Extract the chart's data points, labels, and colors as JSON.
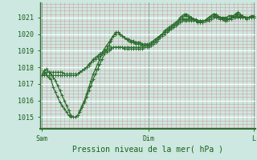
{
  "background_color": "#cce8e0",
  "plot_bg_color": "#cce8e0",
  "line_color": "#2d6e2d",
  "marker_color": "#2d6e2d",
  "xlabel": "Pression niveau de la mer( hPa )",
  "ylim": [
    1014.3,
    1021.9
  ],
  "yticks": [
    1015,
    1016,
    1017,
    1018,
    1019,
    1020,
    1021
  ],
  "xtick_labels": [
    "Sam",
    "Dim",
    "L"
  ],
  "xtick_positions": [
    0,
    48,
    95
  ],
  "total_points": 96,
  "series1": [
    1017.5,
    1017.8,
    1017.9,
    1017.7,
    1017.6,
    1017.4,
    1017.2,
    1016.9,
    1016.6,
    1016.3,
    1016.0,
    1015.7,
    1015.4,
    1015.1,
    1015.0,
    1015.0,
    1015.1,
    1015.3,
    1015.6,
    1015.9,
    1016.2,
    1016.6,
    1016.9,
    1017.3,
    1017.6,
    1017.9,
    1018.2,
    1018.5,
    1018.8,
    1019.0,
    1019.3,
    1019.6,
    1019.9,
    1020.0,
    1020.1,
    1020.0,
    1019.9,
    1019.8,
    1019.7,
    1019.6,
    1019.5,
    1019.5,
    1019.4,
    1019.4,
    1019.4,
    1019.3,
    1019.3,
    1019.3,
    1019.3,
    1019.4,
    1019.5,
    1019.6,
    1019.7,
    1019.9,
    1020.0,
    1020.2,
    1020.3,
    1020.4,
    1020.5,
    1020.6,
    1020.7,
    1020.8,
    1021.0,
    1021.1,
    1021.2,
    1021.2,
    1021.1,
    1021.0,
    1020.9,
    1020.8,
    1020.7,
    1020.7,
    1020.7,
    1020.8,
    1020.9,
    1021.0,
    1021.1,
    1021.2,
    1021.2,
    1021.1,
    1021.0,
    1020.9,
    1020.8,
    1020.8,
    1020.9,
    1021.0,
    1021.1,
    1021.2,
    1021.3,
    1021.2,
    1021.1,
    1021.0,
    1020.9,
    1021.0,
    1021.1,
    1021.1
  ],
  "series2": [
    1017.5,
    1017.6,
    1017.7,
    1017.7,
    1017.7,
    1017.7,
    1017.7,
    1017.7,
    1017.7,
    1017.7,
    1017.6,
    1017.6,
    1017.6,
    1017.6,
    1017.6,
    1017.6,
    1017.6,
    1017.7,
    1017.8,
    1017.9,
    1018.0,
    1018.1,
    1018.3,
    1018.4,
    1018.5,
    1018.6,
    1018.7,
    1018.8,
    1018.9,
    1018.9,
    1019.0,
    1019.1,
    1019.2,
    1019.2,
    1019.2,
    1019.2,
    1019.2,
    1019.2,
    1019.2,
    1019.2,
    1019.2,
    1019.2,
    1019.2,
    1019.2,
    1019.2,
    1019.2,
    1019.3,
    1019.3,
    1019.3,
    1019.4,
    1019.5,
    1019.6,
    1019.7,
    1019.9,
    1020.0,
    1020.1,
    1020.2,
    1020.3,
    1020.4,
    1020.5,
    1020.6,
    1020.7,
    1020.8,
    1020.9,
    1020.9,
    1020.9,
    1020.9,
    1020.9,
    1020.9,
    1020.9,
    1020.8,
    1020.8,
    1020.8,
    1020.8,
    1020.8,
    1020.9,
    1021.0,
    1021.1,
    1021.1,
    1021.0,
    1020.9,
    1020.9,
    1020.9,
    1020.9,
    1020.9,
    1021.0,
    1021.0,
    1021.1,
    1021.1,
    1021.0,
    1021.0,
    1021.0,
    1021.0,
    1021.0,
    1021.0,
    1021.0
  ],
  "series3": [
    1017.5,
    1017.5,
    1017.5,
    1017.5,
    1017.5,
    1017.5,
    1017.5,
    1017.5,
    1017.5,
    1017.5,
    1017.5,
    1017.5,
    1017.5,
    1017.5,
    1017.5,
    1017.5,
    1017.6,
    1017.7,
    1017.8,
    1017.9,
    1018.0,
    1018.2,
    1018.3,
    1018.5,
    1018.6,
    1018.7,
    1018.8,
    1018.9,
    1019.0,
    1019.1,
    1019.1,
    1019.2,
    1019.2,
    1019.2,
    1019.2,
    1019.2,
    1019.2,
    1019.1,
    1019.1,
    1019.1,
    1019.1,
    1019.1,
    1019.1,
    1019.1,
    1019.1,
    1019.1,
    1019.2,
    1019.2,
    1019.2,
    1019.3,
    1019.4,
    1019.5,
    1019.6,
    1019.8,
    1019.9,
    1020.0,
    1020.1,
    1020.2,
    1020.3,
    1020.4,
    1020.5,
    1020.6,
    1020.7,
    1020.8,
    1020.8,
    1020.8,
    1020.8,
    1020.8,
    1020.8,
    1020.8,
    1020.8,
    1020.8,
    1020.8,
    1020.8,
    1020.8,
    1020.8,
    1020.9,
    1021.0,
    1021.0,
    1021.0,
    1021.0,
    1020.9,
    1020.9,
    1020.9,
    1020.9,
    1020.9,
    1021.0,
    1021.0,
    1021.0,
    1021.0,
    1021.0,
    1021.0,
    1021.0,
    1021.0,
    1021.0,
    1021.0
  ],
  "series4": [
    1017.5,
    1017.8,
    1017.5,
    1017.4,
    1017.3,
    1016.8,
    1016.5,
    1016.2,
    1015.9,
    1015.7,
    1015.5,
    1015.3,
    1015.1,
    1015.0,
    1015.0,
    1015.0,
    1015.1,
    1015.4,
    1015.7,
    1016.0,
    1016.4,
    1016.8,
    1017.2,
    1017.6,
    1017.9,
    1018.2,
    1018.5,
    1018.8,
    1019.1,
    1019.3,
    1019.5,
    1019.7,
    1019.9,
    1020.1,
    1020.1,
    1020.0,
    1019.9,
    1019.8,
    1019.7,
    1019.7,
    1019.6,
    1019.6,
    1019.5,
    1019.5,
    1019.5,
    1019.4,
    1019.4,
    1019.4,
    1019.4,
    1019.5,
    1019.6,
    1019.7,
    1019.8,
    1019.9,
    1020.0,
    1020.1,
    1020.2,
    1020.3,
    1020.4,
    1020.5,
    1020.6,
    1020.7,
    1020.9,
    1021.0,
    1021.1,
    1021.1,
    1021.0,
    1021.0,
    1020.9,
    1020.8,
    1020.7,
    1020.7,
    1020.7,
    1020.8,
    1020.9,
    1021.0,
    1021.1,
    1021.2,
    1021.1,
    1021.0,
    1021.0,
    1021.0,
    1021.0,
    1021.0,
    1021.1,
    1021.1,
    1021.1,
    1021.2,
    1021.2,
    1021.1,
    1021.1,
    1021.0,
    1021.0,
    1021.0,
    1021.0,
    1021.0
  ]
}
